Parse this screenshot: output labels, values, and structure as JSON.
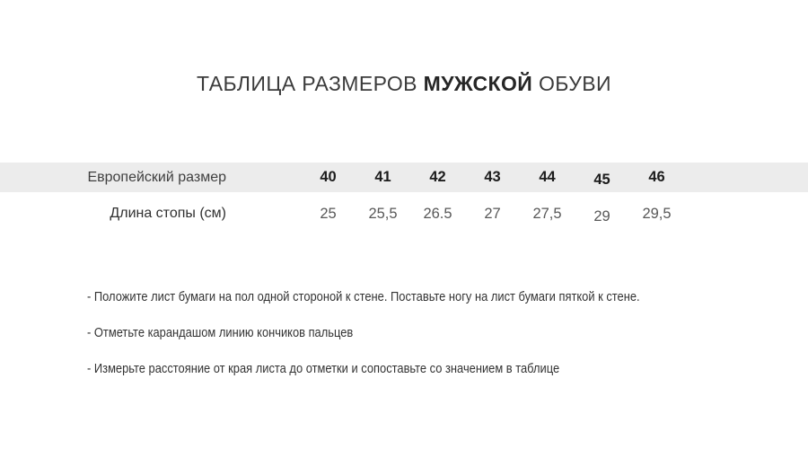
{
  "title": {
    "prefix": "ТАБЛИЦА РАЗМЕРОВ",
    "bold": "МУЖСКОЙ",
    "suffix": "ОБУВИ"
  },
  "table": {
    "rows": [
      {
        "label": "Европейский размер",
        "values": [
          "40",
          "41",
          "42",
          "43",
          "44",
          "45",
          "46"
        ]
      },
      {
        "label": "Длина стопы (см)",
        "values": [
          "25",
          "25,5",
          "26.5",
          "27",
          "27,5",
          "29",
          "29,5"
        ]
      }
    ]
  },
  "instructions": [
    "- Положите лист бумаги на пол одной стороной к стене. Поставьте ногу на лист бумаги пяткой к стене.",
    "- Отметьте карандашом линию кончиков пальцев",
    "- Измерьте расстояние от края листа до отметки и сопоставьте со значением в таблице"
  ],
  "colors": {
    "header_band": "#ececec",
    "title_text": "#3b3b3b",
    "size_text": "#1c1c1c",
    "length_text": "#585858",
    "instruction_text": "#333333"
  }
}
